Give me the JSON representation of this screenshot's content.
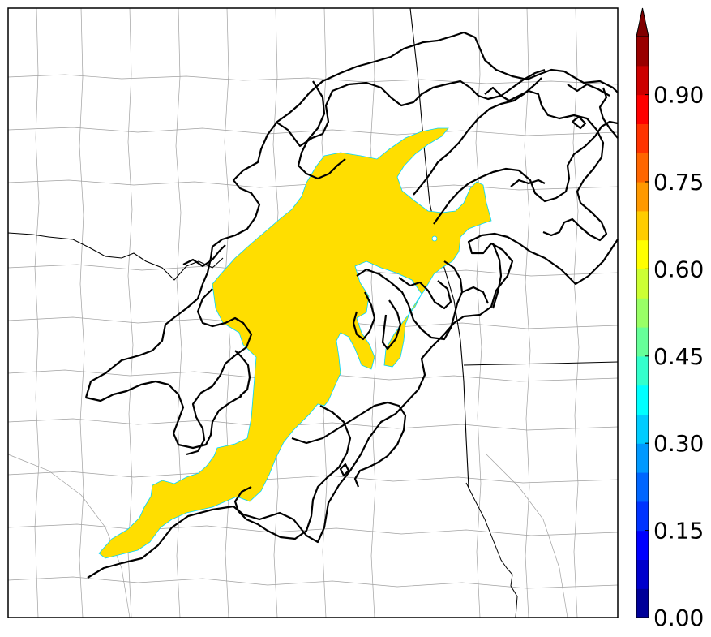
{
  "map": {
    "colorbar": {
      "min": 0.0,
      "max": 1.0,
      "levels": 20,
      "extend": "max",
      "colormap": "jet",
      "tick_labels": [
        "0.00",
        "0.15",
        "0.30",
        "0.45",
        "0.60",
        "0.75",
        "0.90"
      ],
      "tick_values": [
        0.0,
        0.15,
        0.3,
        0.45,
        0.6,
        0.75,
        0.9
      ]
    },
    "shaded_field": {
      "value_band": [
        0.65,
        0.7
      ],
      "color": "#ffde00"
    },
    "contour_color": "#000000",
    "county_line_color": "#9a9a9a",
    "state_line_color": "#000000"
  }
}
